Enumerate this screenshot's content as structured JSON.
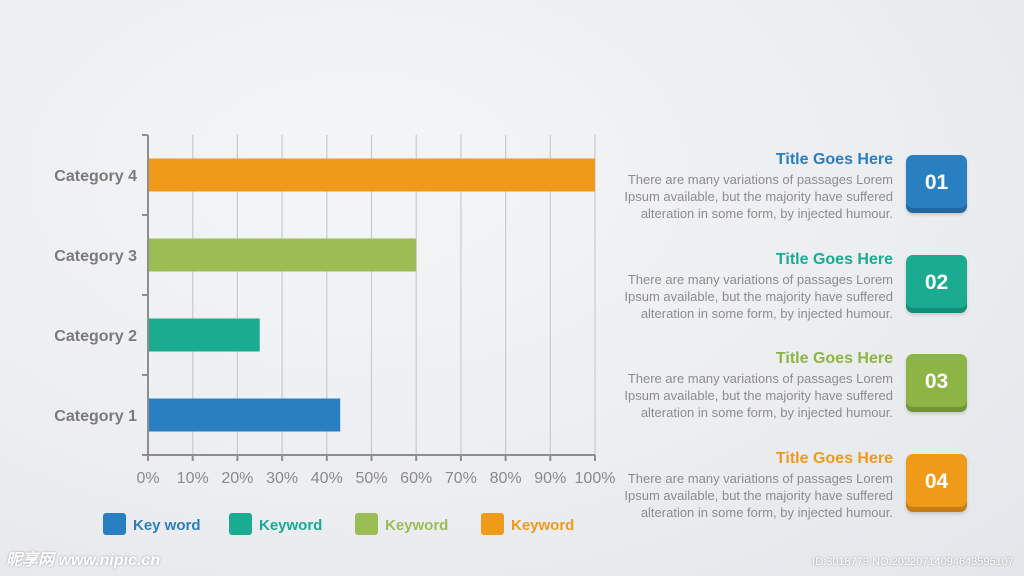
{
  "chart_data": {
    "type": "bar",
    "orientation": "horizontal",
    "categories": [
      "Category 1",
      "Category 2",
      "Category 3",
      "Category 4"
    ],
    "values": [
      43,
      25,
      60,
      100
    ],
    "bar_colors": [
      "#2a7fc1",
      "#1aab90",
      "#9cbd56",
      "#f09a1a"
    ],
    "xlim": [
      0,
      100
    ],
    "x_ticks": [
      "0%",
      "10%",
      "20%",
      "30%",
      "40%",
      "50%",
      "60%",
      "70%",
      "80%",
      "90%",
      "100%"
    ],
    "grid": true,
    "legend": [
      {
        "label": "Key word",
        "color": "#2a7fc1"
      },
      {
        "label": "Keyword",
        "color": "#1aab90"
      },
      {
        "label": "Keyword",
        "color": "#9cbd56"
      },
      {
        "label": "Keyword",
        "color": "#f09a1a"
      }
    ],
    "legend_position": "bottom"
  },
  "items": [
    {
      "title": "Title Goes Here",
      "text": "There are many variations of passages Lorem Ipsum available, but the majority have suffered alteration in some form, by injected humour.",
      "number": "01",
      "color": "#2a7fc1"
    },
    {
      "title": "Title Goes Here",
      "text": "There are many variations of passages Lorem Ipsum available, but the majority have suffered alteration in some form, by injected humour.",
      "number": "02",
      "color": "#1aab90"
    },
    {
      "title": "Title Goes Here",
      "text": "There are many variations of passages Lorem Ipsum available, but the majority have suffered alteration in some form, by injected humour.",
      "number": "03",
      "color": "#8db546"
    },
    {
      "title": "Title Goes Here",
      "text": "There are many variations of passages Lorem Ipsum available, but the majority have suffered alteration in some form, by injected humour.",
      "number": "04",
      "color": "#f09a1a"
    }
  ],
  "watermark": {
    "left": "昵享网 www.nipic.cn",
    "right": "ID:3018779 NO:20220714094643595107"
  }
}
